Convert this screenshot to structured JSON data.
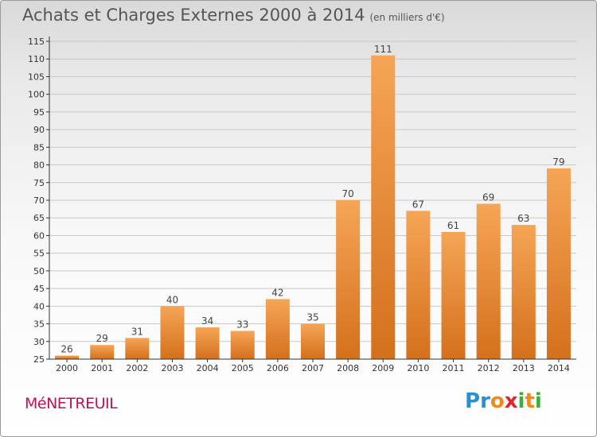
{
  "header": {
    "title": "Achats et Charges Externes 2000 à 2014",
    "unit": "(en milliers d'€)"
  },
  "footer": {
    "commune": "MéNETREUIL",
    "logo_letters": [
      "P",
      "r",
      "o",
      "x",
      "i",
      "t",
      "i"
    ],
    "logo_colors": [
      "#2a8fd0",
      "#2a8fd0",
      "#f08a1c",
      "#e0262b",
      "#3cae3c",
      "#f08a1c",
      "#3cae3c"
    ]
  },
  "colors": {
    "bar_light": "#f5a556",
    "bar_dark": "#d4701c",
    "axis": "#333333",
    "grid": "#c8c8c8"
  },
  "chart_data": {
    "type": "bar",
    "categories": [
      "2000",
      "2001",
      "2002",
      "2003",
      "2004",
      "2005",
      "2006",
      "2007",
      "2008",
      "2009",
      "2010",
      "2011",
      "2012",
      "2013",
      "2014"
    ],
    "values": [
      26,
      29,
      31,
      40,
      34,
      33,
      42,
      35,
      70,
      111,
      67,
      61,
      69,
      63,
      79
    ],
    "ylim": [
      25,
      115
    ],
    "yticks": [
      25,
      30,
      35,
      40,
      45,
      50,
      55,
      60,
      65,
      70,
      75,
      80,
      85,
      90,
      95,
      100,
      105,
      110,
      115
    ],
    "grid": true,
    "data_labels": true
  }
}
